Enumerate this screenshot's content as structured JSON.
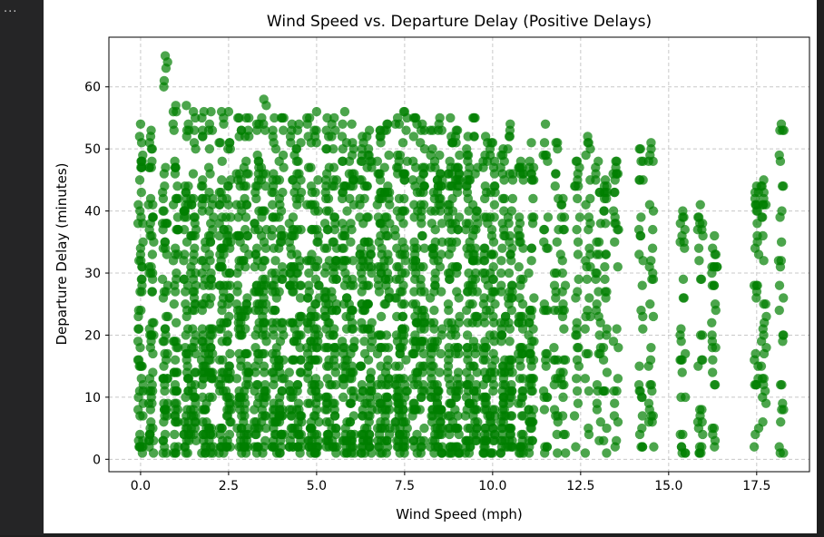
{
  "cell": {
    "ellipsis": "..."
  },
  "chart_data": {
    "type": "scatter",
    "title": "Wind Speed vs. Departure Delay (Positive Delays)",
    "xlabel": "Wind Speed (mph)",
    "ylabel": "Departure Delay (minutes)",
    "xlim": [
      -0.9,
      19.0
    ],
    "ylim": [
      -2,
      68
    ],
    "xticks": [
      0.0,
      2.5,
      5.0,
      7.5,
      10.0,
      12.5,
      15.0,
      17.5
    ],
    "xtick_labels": [
      "0.0",
      "2.5",
      "5.0",
      "7.5",
      "10.0",
      "12.5",
      "15.0",
      "17.5"
    ],
    "yticks": [
      0,
      10,
      20,
      30,
      40,
      50,
      60
    ],
    "ytick_labels": [
      "0",
      "10",
      "20",
      "30",
      "40",
      "50",
      "60"
    ],
    "grid": true,
    "marker_color": "#007f00",
    "marker_alpha": 0.7,
    "series": [
      {
        "wind_speeds": [
          0.0,
          0.3,
          0.7,
          1.0,
          1.3,
          1.5,
          1.8,
          2.0,
          2.3,
          2.5,
          2.8,
          3.0,
          3.3,
          3.5,
          3.8,
          4.0,
          4.3,
          4.5,
          4.8,
          5.0,
          5.3,
          5.5,
          5.8,
          6.0,
          6.3,
          6.5,
          6.8,
          7.0,
          7.3,
          7.5,
          7.8,
          8.0,
          8.3,
          8.5,
          8.8,
          9.0,
          9.3,
          9.5,
          9.8,
          10.0,
          10.3,
          10.5,
          10.8,
          11.1,
          11.5,
          11.8,
          12.0,
          12.4,
          12.7,
          13.0,
          13.2,
          13.5,
          14.2,
          14.5,
          15.4,
          15.9,
          16.3,
          17.5,
          17.7,
          18.2
        ],
        "max_delays": [
          54,
          53,
          65,
          57,
          57,
          56,
          56,
          56,
          56,
          56,
          55,
          55,
          54,
          58,
          55,
          55,
          54,
          54,
          55,
          56,
          55,
          55,
          56,
          54,
          52,
          53,
          53,
          54,
          55,
          56,
          55,
          54,
          53,
          55,
          55,
          53,
          52,
          55,
          52,
          51,
          50,
          54,
          48,
          51,
          54,
          51,
          42,
          48,
          52,
          48,
          45,
          48,
          50,
          51,
          40,
          41,
          36,
          44,
          45,
          54
        ],
        "min_delays": [
          1,
          1,
          1,
          1,
          1,
          1,
          1,
          1,
          1,
          1,
          1,
          1,
          1,
          1,
          1,
          1,
          1,
          1,
          1,
          1,
          1,
          1,
          1,
          1,
          1,
          1,
          1,
          1,
          1,
          1,
          1,
          1,
          1,
          1,
          1,
          1,
          1,
          1,
          1,
          1,
          1,
          1,
          1,
          1,
          1,
          1,
          1,
          1,
          1,
          1,
          1,
          1,
          1,
          1,
          1,
          1,
          1,
          1,
          1,
          1
        ]
      }
    ]
  }
}
